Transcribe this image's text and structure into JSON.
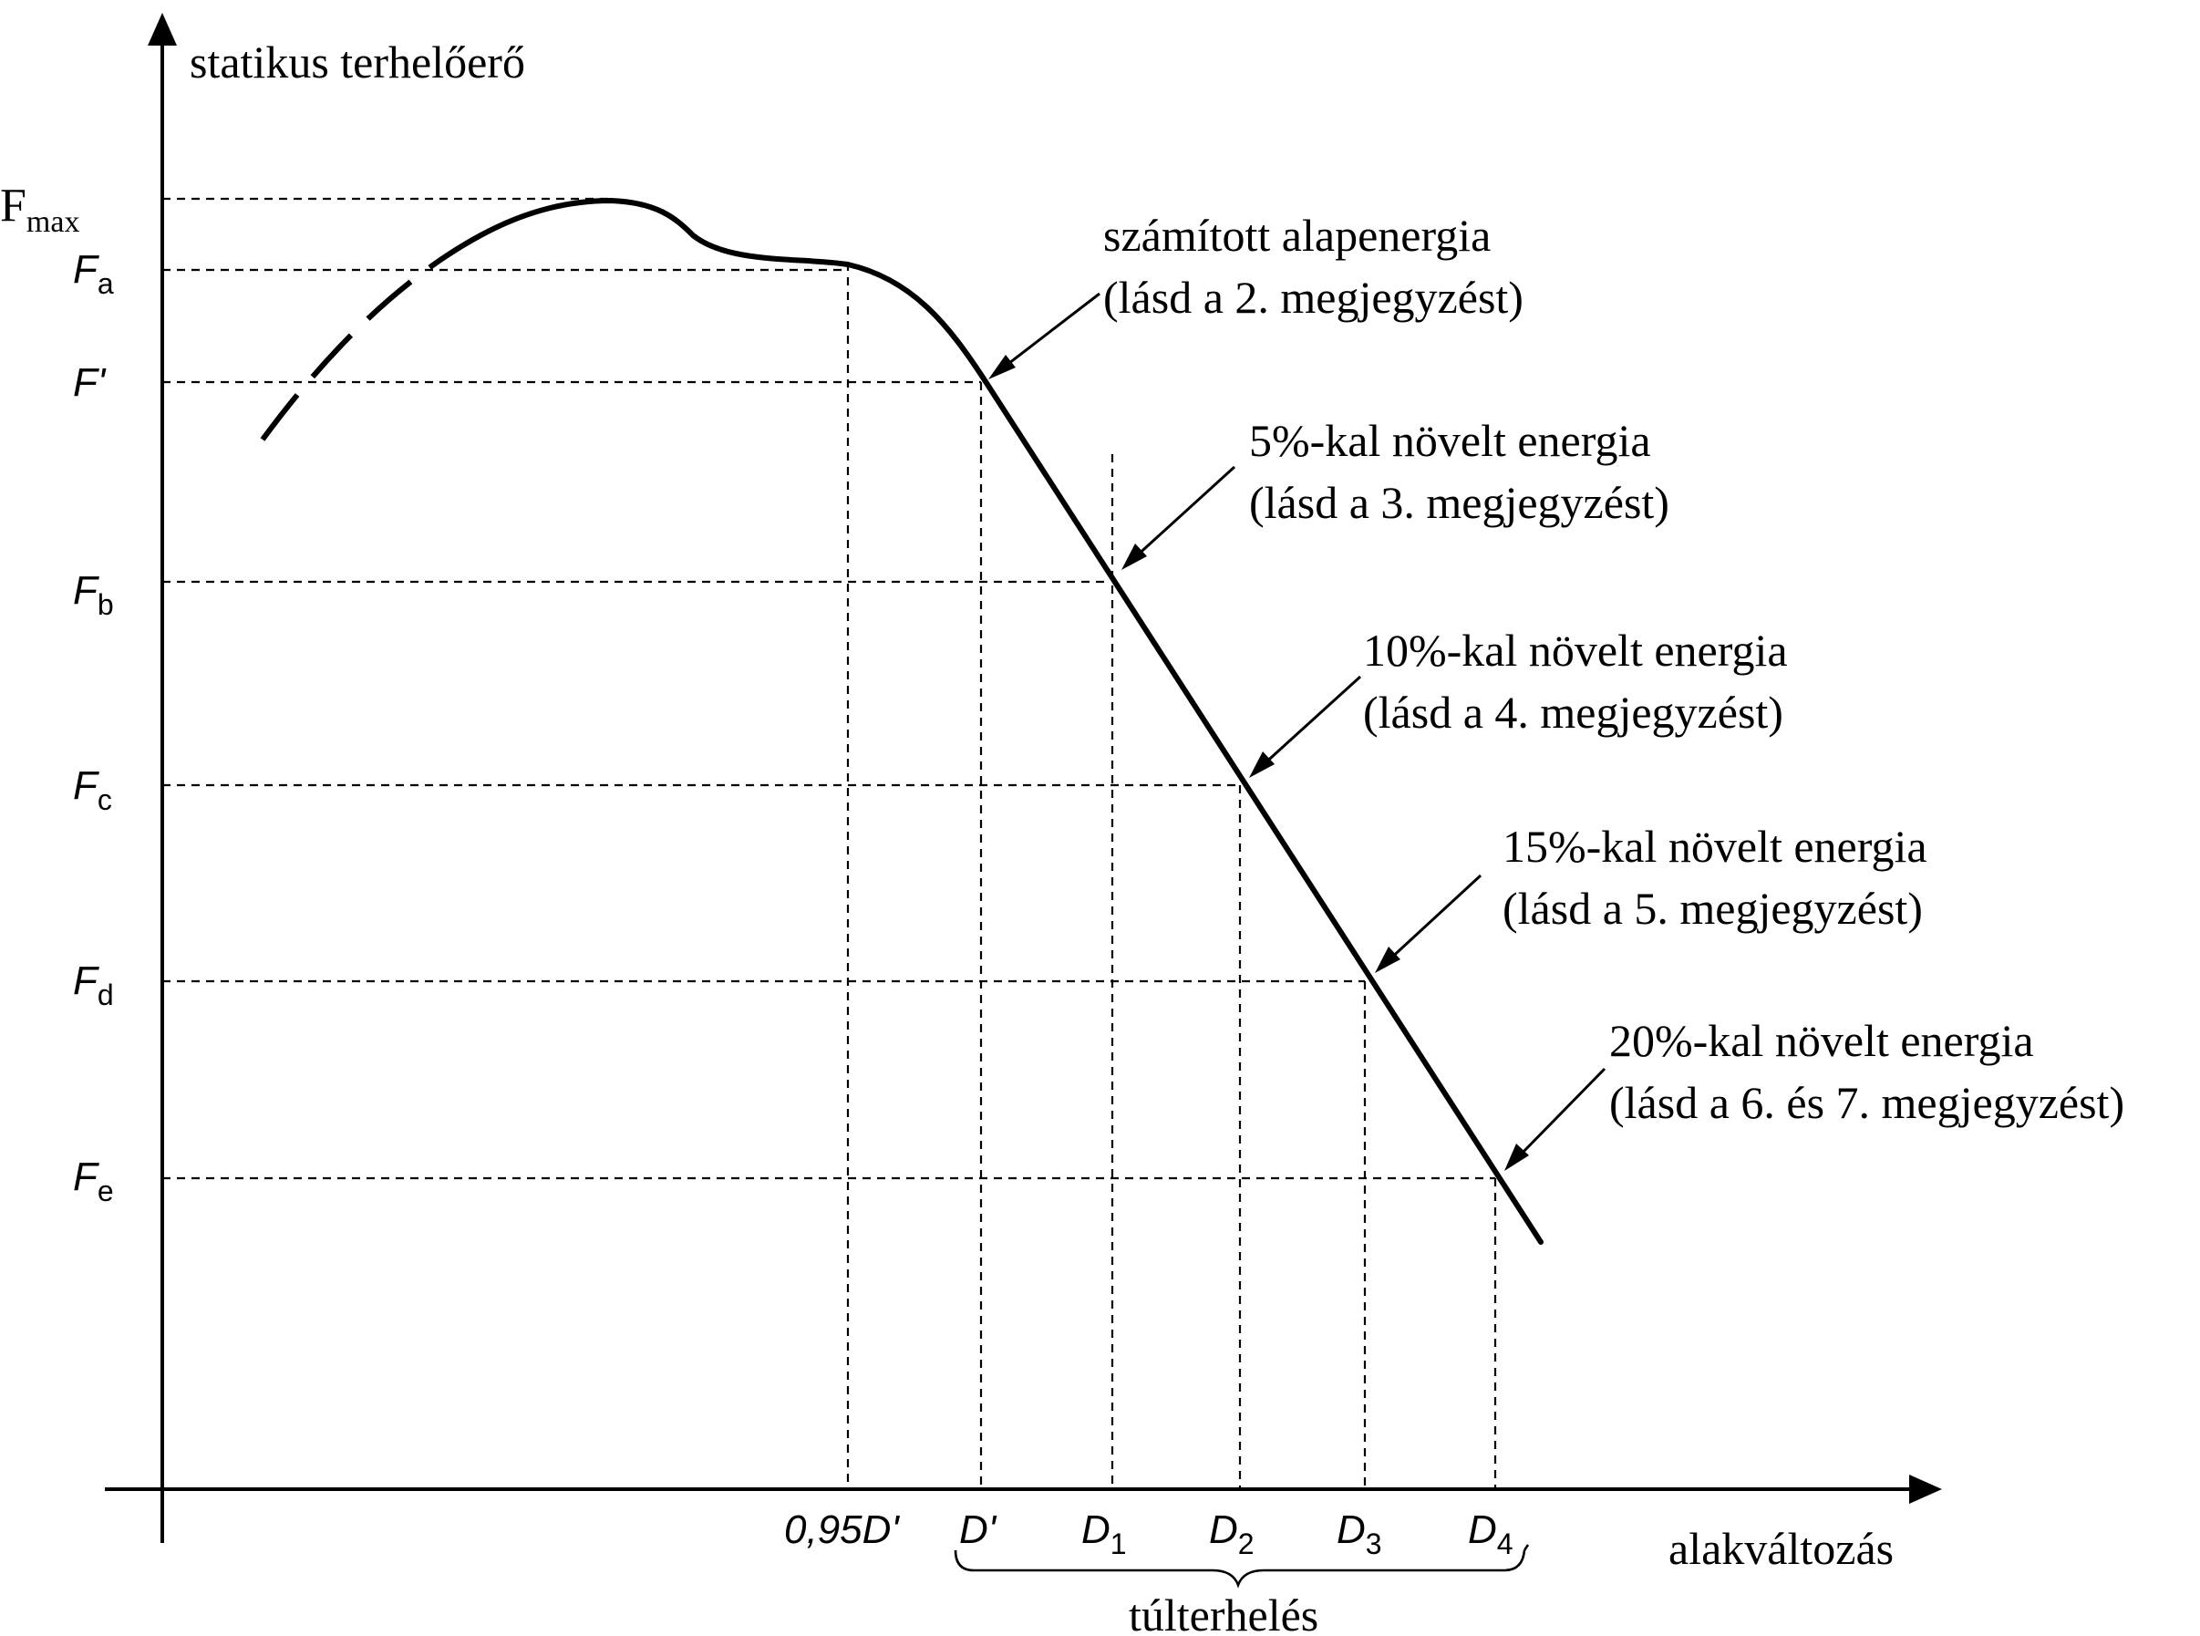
{
  "axes": {
    "y_title": "statikus terhelőerő",
    "x_title": "alakváltozás"
  },
  "y_labels": [
    {
      "id": "fmax",
      "main": "F",
      "sub": "max"
    },
    {
      "id": "fa",
      "main": "F",
      "sub": "a"
    },
    {
      "id": "fprime",
      "main": "F'",
      "sub": ""
    },
    {
      "id": "fb",
      "main": "F",
      "sub": "b"
    },
    {
      "id": "fc",
      "main": "F",
      "sub": "c"
    },
    {
      "id": "fd",
      "main": "F",
      "sub": "d"
    },
    {
      "id": "fe",
      "main": "F",
      "sub": "e"
    }
  ],
  "x_labels": [
    {
      "id": "d095",
      "main": "0,95D'",
      "sub": ""
    },
    {
      "id": "dprime",
      "main": "D'",
      "sub": ""
    },
    {
      "id": "d1",
      "main": "D",
      "sub": "1"
    },
    {
      "id": "d2",
      "main": "D",
      "sub": "2"
    },
    {
      "id": "d3",
      "main": "D",
      "sub": "3"
    },
    {
      "id": "d4",
      "main": "D",
      "sub": "4"
    }
  ],
  "annotations": [
    {
      "id": "base",
      "line1": "számított alapenergia",
      "line2": "(lásd a 2. megjegyzést)"
    },
    {
      "id": "p5",
      "line1": "5%-kal növelt energia",
      "line2": "(lásd a 3. megjegyzést)"
    },
    {
      "id": "p10",
      "line1": "10%-kal növelt energia",
      "line2": "(lásd a 4. megjegyzést)"
    },
    {
      "id": "p15",
      "line1": "15%-kal növelt energia",
      "line2": "(lásd a 5. megjegyzést)"
    },
    {
      "id": "p20",
      "line1": "20%-kal növelt energia",
      "line2": "(lásd a 6. és 7. megjegyzést)"
    }
  ],
  "overload_label": "túlterhelés"
}
